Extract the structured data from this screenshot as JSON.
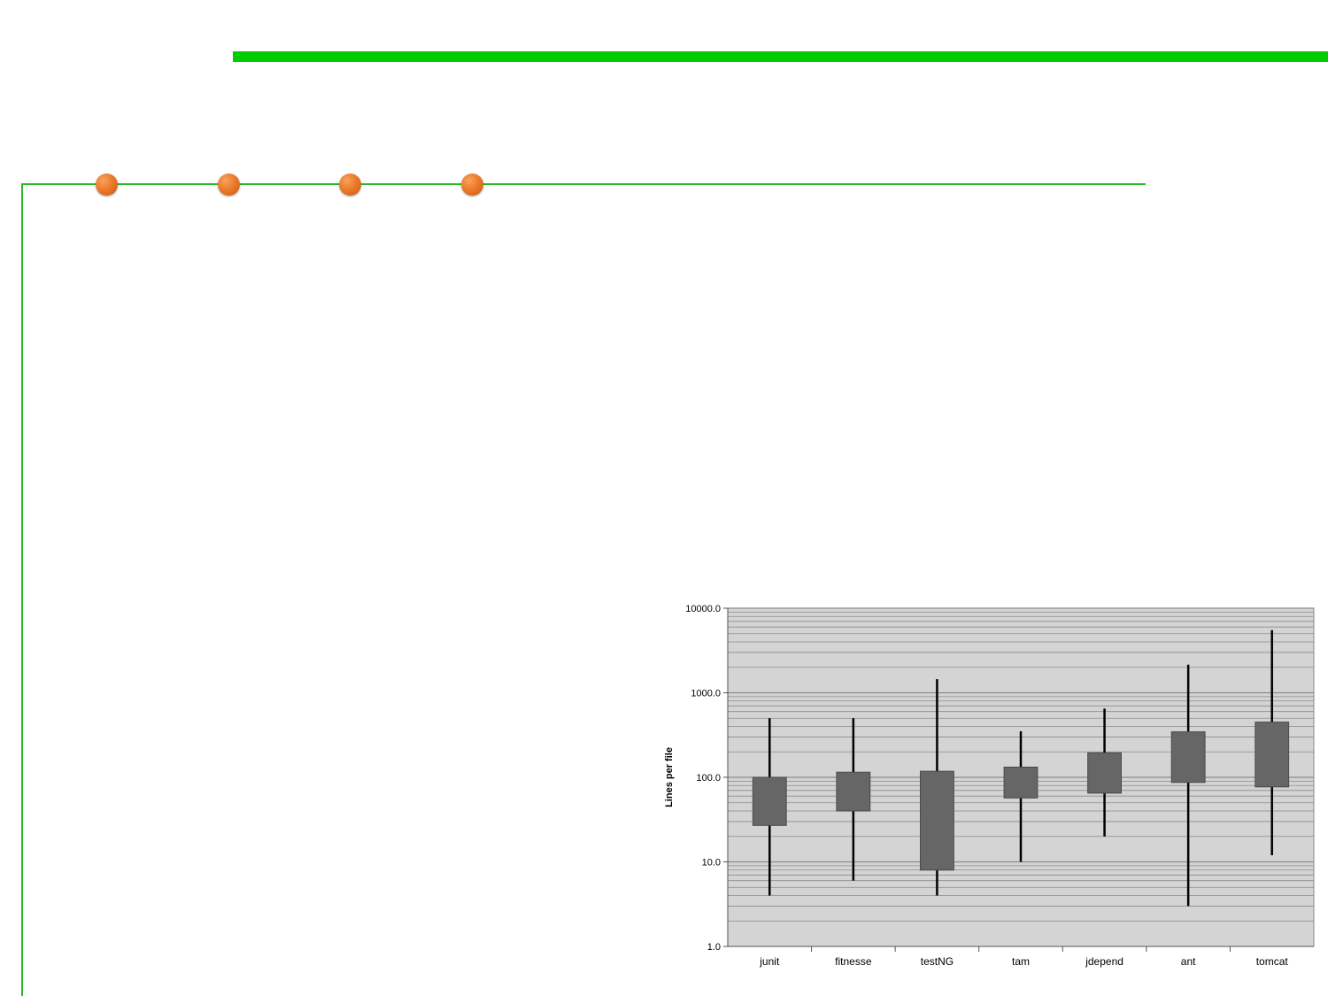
{
  "slide": {
    "accent_color": "#00cc00",
    "rule_color": "#22bb22",
    "bullet_color": "#ec7a2a",
    "bullets": [
      "orange-dot",
      "orange-dot",
      "orange-dot",
      "orange-dot"
    ]
  },
  "chart_data": {
    "type": "box",
    "ylabel": "Lines per file",
    "xlabel": "",
    "yscale": "log",
    "ylim": [
      1,
      10000
    ],
    "yticks": [
      1,
      10,
      100,
      1000,
      10000
    ],
    "ytick_labels": [
      "1.0",
      "10.0",
      "100.0",
      "1000.0",
      "10000.0"
    ],
    "grid": true,
    "plot_background": "#d4d4d4",
    "box_color": "#666666",
    "whisker_color": "#000000",
    "categories": [
      "junit",
      "fitnesse",
      "testNG",
      "tam",
      "jdepend",
      "ant",
      "tomcat"
    ],
    "series": [
      {
        "category": "junit",
        "min": 4,
        "q1": 27,
        "q3": 100,
        "max": 500
      },
      {
        "category": "fitnesse",
        "min": 6,
        "q1": 40,
        "q3": 115,
        "max": 500
      },
      {
        "category": "testNG",
        "min": 4,
        "q1": 8,
        "q3": 118,
        "max": 1450
      },
      {
        "category": "tam",
        "min": 10,
        "q1": 57,
        "q3": 132,
        "max": 350
      },
      {
        "category": "jdepend",
        "min": 20,
        "q1": 65,
        "q3": 195,
        "max": 650
      },
      {
        "category": "ant",
        "min": 3,
        "q1": 87,
        "q3": 345,
        "max": 2150
      },
      {
        "category": "tomcat",
        "min": 12,
        "q1": 77,
        "q3": 450,
        "max": 5500
      }
    ]
  }
}
